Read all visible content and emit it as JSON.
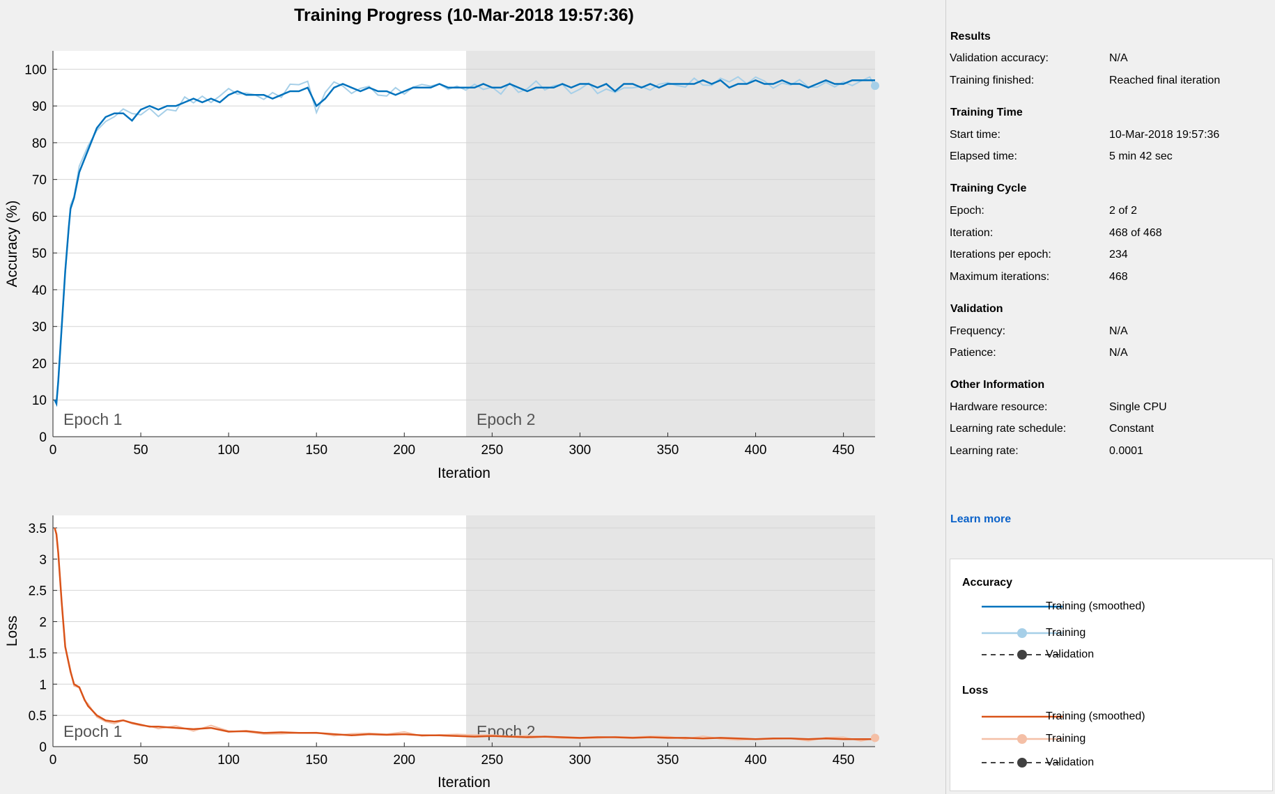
{
  "title": "Training Progress (10-Mar-2018 19:57:36)",
  "accuracy_chart": {
    "ylabel": "Accuracy (%)",
    "xlabel": "Iteration",
    "yticks": [
      "0",
      "10",
      "20",
      "30",
      "40",
      "50",
      "60",
      "70",
      "80",
      "90",
      "100"
    ],
    "xticks": [
      "0",
      "50",
      "100",
      "150",
      "200",
      "250",
      "300",
      "350",
      "400",
      "450"
    ],
    "epoch_labels": [
      "Epoch 1",
      "Epoch 2"
    ]
  },
  "loss_chart": {
    "ylabel": "Loss",
    "xlabel": "Iteration",
    "yticks": [
      "0",
      "0.5",
      "1",
      "1.5",
      "2",
      "2.5",
      "3",
      "3.5"
    ],
    "xticks": [
      "0",
      "50",
      "100",
      "150",
      "200",
      "250",
      "300",
      "350",
      "400",
      "450"
    ],
    "epoch_labels": [
      "Epoch 1",
      "Epoch 2"
    ]
  },
  "chart_data": [
    {
      "type": "line",
      "title": "Training Progress (10-Mar-2018 19:57:36)",
      "xlabel": "Iteration",
      "ylabel": "Accuracy (%)",
      "xlim": [
        0,
        468
      ],
      "ylim": [
        0,
        105
      ],
      "epoch_boundary": 234,
      "grid": true,
      "colors": {
        "smoothed": "#0072bd",
        "raw": "#a6cfe8",
        "epoch2_shade": "#e5e5e5"
      },
      "series": [
        {
          "name": "Training (smoothed)",
          "x": [
            1,
            2,
            3,
            5,
            7,
            9,
            10,
            12,
            15,
            20,
            25,
            30,
            35,
            40,
            45,
            50,
            55,
            60,
            65,
            70,
            75,
            80,
            85,
            90,
            95,
            100,
            105,
            110,
            115,
            120,
            125,
            130,
            135,
            140,
            145,
            150,
            155,
            160,
            165,
            170,
            175,
            180,
            185,
            190,
            195,
            200,
            205,
            210,
            215,
            220,
            225,
            230,
            235,
            240,
            245,
            250,
            255,
            260,
            265,
            270,
            275,
            280,
            285,
            290,
            295,
            300,
            305,
            310,
            315,
            320,
            325,
            330,
            335,
            340,
            345,
            350,
            355,
            360,
            365,
            370,
            375,
            380,
            385,
            390,
            395,
            400,
            405,
            410,
            415,
            420,
            425,
            430,
            435,
            440,
            445,
            450,
            455,
            460,
            465,
            468
          ],
          "y": [
            10,
            9,
            15,
            30,
            45,
            57,
            62,
            65,
            72,
            78,
            84,
            87,
            88,
            88,
            86,
            89,
            90,
            89,
            90,
            90,
            91,
            92,
            91,
            92,
            91,
            93,
            94,
            93,
            93,
            93,
            92,
            93,
            94,
            94,
            95,
            90,
            92,
            95,
            96,
            95,
            94,
            95,
            94,
            94,
            93,
            94,
            95,
            95,
            95,
            96,
            95,
            95,
            95,
            95,
            96,
            95,
            95,
            96,
            95,
            94,
            95,
            95,
            95,
            96,
            95,
            96,
            96,
            95,
            96,
            94,
            96,
            96,
            95,
            96,
            95,
            96,
            96,
            96,
            96,
            97,
            96,
            97,
            95,
            96,
            96,
            97,
            96,
            96,
            97,
            96,
            96,
            95,
            96,
            97,
            96,
            96,
            97,
            97,
            97,
            97
          ]
        },
        {
          "name": "Training",
          "x": [
            468
          ],
          "y": [
            95.5
          ]
        }
      ]
    },
    {
      "type": "line",
      "xlabel": "Iteration",
      "ylabel": "Loss",
      "xlim": [
        0,
        468
      ],
      "ylim": [
        0,
        3.7
      ],
      "epoch_boundary": 234,
      "grid": true,
      "colors": {
        "smoothed": "#d95319",
        "raw": "#f4bfa6",
        "epoch2_shade": "#e5e5e5"
      },
      "series": [
        {
          "name": "Training (smoothed)",
          "x": [
            1,
            2,
            3,
            4,
            5,
            7,
            10,
            12,
            15,
            18,
            20,
            25,
            30,
            35,
            40,
            45,
            50,
            55,
            60,
            70,
            80,
            90,
            100,
            110,
            120,
            130,
            140,
            150,
            160,
            170,
            180,
            190,
            200,
            210,
            220,
            230,
            240,
            250,
            260,
            270,
            280,
            290,
            300,
            310,
            320,
            330,
            340,
            350,
            360,
            370,
            380,
            390,
            400,
            410,
            420,
            430,
            440,
            450,
            460,
            468
          ],
          "y": [
            3.5,
            3.4,
            3.1,
            2.7,
            2.3,
            1.6,
            1.2,
            1.0,
            0.95,
            0.75,
            0.65,
            0.5,
            0.42,
            0.4,
            0.42,
            0.38,
            0.35,
            0.32,
            0.32,
            0.3,
            0.28,
            0.3,
            0.24,
            0.25,
            0.22,
            0.23,
            0.22,
            0.22,
            0.2,
            0.18,
            0.2,
            0.19,
            0.2,
            0.18,
            0.18,
            0.17,
            0.16,
            0.17,
            0.16,
            0.15,
            0.16,
            0.15,
            0.14,
            0.15,
            0.15,
            0.14,
            0.15,
            0.14,
            0.14,
            0.13,
            0.14,
            0.13,
            0.12,
            0.13,
            0.13,
            0.12,
            0.13,
            0.12,
            0.12,
            0.12
          ]
        },
        {
          "name": "Training",
          "x": [
            468
          ],
          "y": [
            0.14
          ]
        }
      ]
    }
  ],
  "panel": {
    "results": {
      "heading": "Results",
      "rows": [
        {
          "label": "Validation accuracy:",
          "value": "N/A"
        },
        {
          "label": "Training finished:",
          "value": "Reached final iteration"
        }
      ]
    },
    "training_time": {
      "heading": "Training Time",
      "rows": [
        {
          "label": "Start time:",
          "value": "10-Mar-2018 19:57:36"
        },
        {
          "label": "Elapsed time:",
          "value": "5 min 42 sec"
        }
      ]
    },
    "training_cycle": {
      "heading": "Training Cycle",
      "rows": [
        {
          "label": "Epoch:",
          "value": "2 of 2"
        },
        {
          "label": "Iteration:",
          "value": "468 of 468"
        },
        {
          "label": "Iterations per epoch:",
          "value": "234"
        },
        {
          "label": "Maximum iterations:",
          "value": "468"
        }
      ]
    },
    "validation": {
      "heading": "Validation",
      "rows": [
        {
          "label": "Frequency:",
          "value": "N/A"
        },
        {
          "label": "Patience:",
          "value": "N/A"
        }
      ]
    },
    "other": {
      "heading": "Other Information",
      "rows": [
        {
          "label": "Hardware resource:",
          "value": "Single CPU"
        },
        {
          "label": "Learning rate schedule:",
          "value": "Constant"
        },
        {
          "label": "Learning rate:",
          "value": "0.0001"
        }
      ]
    },
    "learn_more": "Learn more"
  },
  "legend": {
    "accuracy": {
      "heading": "Accuracy",
      "items": [
        "Training (smoothed)",
        "Training",
        "Validation"
      ]
    },
    "loss": {
      "heading": "Loss",
      "items": [
        "Training (smoothed)",
        "Training",
        "Validation"
      ]
    }
  }
}
